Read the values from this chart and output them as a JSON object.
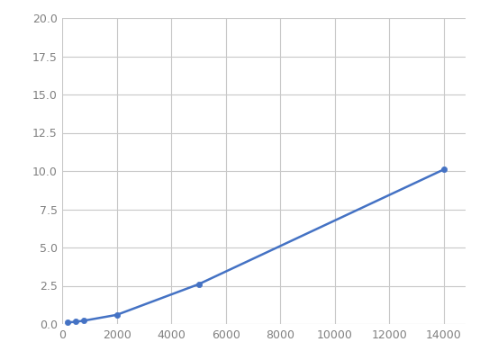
{
  "x": [
    200,
    500,
    800,
    2000,
    5000,
    14000
  ],
  "y": [
    0.1,
    0.15,
    0.22,
    0.6,
    2.6,
    10.1
  ],
  "line_color": "#4472C4",
  "marker_color": "#4472C4",
  "background_color": "#ffffff",
  "plot_bg_color": "#ffffff",
  "grid_color": "#c8c8c8",
  "xlim": [
    0,
    14800
  ],
  "ylim": [
    0.0,
    20.0
  ],
  "xticks": [
    0,
    2000,
    4000,
    6000,
    8000,
    10000,
    12000,
    14000
  ],
  "yticks": [
    0.0,
    2.5,
    5.0,
    7.5,
    10.0,
    12.5,
    15.0,
    17.5,
    20.0
  ],
  "tick_label_fontsize": 9,
  "tick_label_color": "#808080",
  "line_width": 1.8,
  "marker_size": 4.5
}
